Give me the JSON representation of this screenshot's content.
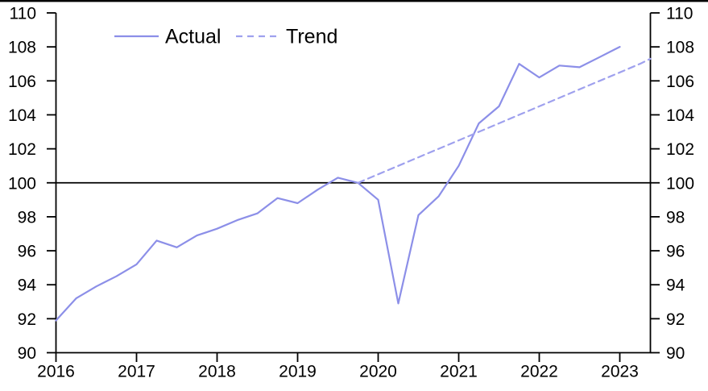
{
  "chart_data": {
    "type": "line",
    "title": "",
    "grid": "off",
    "legend_position": "top-left-inset",
    "x_range": [
      2016,
      2023.38
    ],
    "y_range": [
      90,
      110
    ],
    "x_ticks": [
      2016,
      2017,
      2018,
      2019,
      2020,
      2021,
      2022,
      2023
    ],
    "y_ticks": [
      90,
      92,
      94,
      96,
      98,
      100,
      102,
      104,
      106,
      108,
      110
    ],
    "y_axis_sides": "both",
    "baseline_value": 100,
    "axis_color": "#000000",
    "background_color": "#ffffff",
    "series": [
      {
        "name": "Actual",
        "line_style": "solid",
        "color": "#8c8fe8",
        "x": [
          2016.0,
          2016.25,
          2016.5,
          2016.75,
          2017.0,
          2017.25,
          2017.5,
          2017.75,
          2018.0,
          2018.25,
          2018.5,
          2018.75,
          2019.0,
          2019.25,
          2019.5,
          2019.75,
          2020.0,
          2020.25,
          2020.5,
          2020.75,
          2021.0,
          2021.25,
          2021.5,
          2021.75,
          2022.0,
          2022.25,
          2022.5,
          2022.75,
          2023.0
        ],
        "values": [
          91.9,
          93.2,
          93.9,
          94.5,
          95.2,
          96.6,
          96.2,
          96.9,
          97.3,
          97.8,
          98.2,
          99.1,
          98.8,
          99.6,
          100.3,
          100.0,
          99.0,
          92.9,
          98.1,
          99.2,
          101.0,
          103.5,
          104.5,
          107.0,
          106.2,
          106.9,
          106.8,
          107.4,
          108.0
        ]
      },
      {
        "name": "Trend",
        "line_style": "dashed",
        "color": "#9fa1ee",
        "x": [
          2019.75,
          2020.0,
          2020.25,
          2020.5,
          2020.75,
          2021.0,
          2021.25,
          2021.5,
          2021.75,
          2022.0,
          2022.25,
          2022.5,
          2022.75,
          2023.0,
          2023.25,
          2023.38
        ],
        "values": [
          100.0,
          100.5,
          101.0,
          101.5,
          102.0,
          102.5,
          103.0,
          103.5,
          104.0,
          104.5,
          105.0,
          105.5,
          106.0,
          106.5,
          107.0,
          107.3
        ]
      }
    ]
  }
}
